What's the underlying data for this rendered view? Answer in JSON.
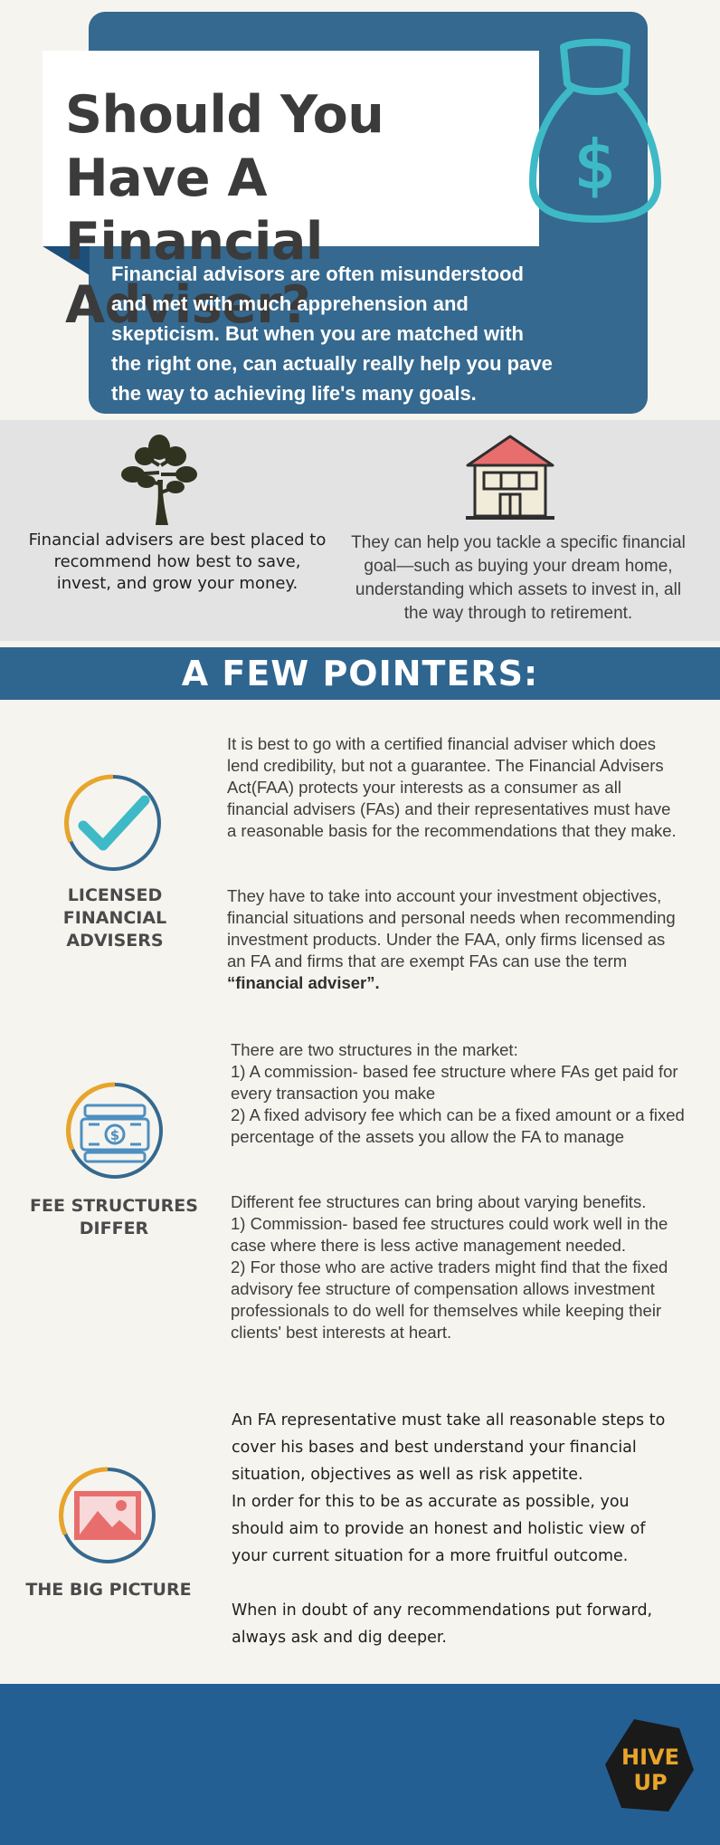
{
  "header": {
    "title_line1": "Should You Have A",
    "title_line2": "Financial Adviser?",
    "intro": "Financial advisors are often misunderstood and met with much apprehension and skepticism. But when you are matched with the right one, can actually really help you pave the way to achieving life's many goals.",
    "icon": "money-bag-icon"
  },
  "benefits": {
    "left_icon": "tree-icon",
    "left_text": "Financial advisers are best placed to recommend how best to save, invest, and grow your money.",
    "right_icon": "house-icon",
    "right_text": "They can help you tackle a specific financial goal—such as buying your dream home, understanding which assets to invest in, all the way through to retirement."
  },
  "section": {
    "title": "A FEW POINTERS:"
  },
  "pointers": [
    {
      "title": "LICENSED FINANCIAL ADVISERS",
      "icon": "checkmark-icon",
      "para1": "It is best to go with a certified financial adviser which does lend credibility, but not a guarantee. The Financial Advisers Act(FAA) protects your interests as a consumer as all financial advisers (FAs) and their representatives must have a reasonable basis for the recommendations that they make.",
      "para2_prefix": "They have to take into account your investment objectives, financial situations and personal needs when recommending investment products. Under the FAA, only firms licensed as an FA and firms that are exempt FAs can use the term ",
      "para2_bold": "“financial adviser”."
    },
    {
      "title": "FEE STRUCTURES DIFFER",
      "icon": "cash-stack-icon",
      "block1": [
        "There are two  structures in the market:",
        "1) A commission- based fee structure where FAs get paid for every transaction you make",
        "2) A fixed advisory fee which can be a fixed amount or a fixed percentage of the assets you allow the FA to manage"
      ],
      "block2": [
        "Different fee structures can bring about varying benefits.",
        "1) Commission- based fee structures could work well in the case where there is less active management needed.",
        "2) For those who are active traders might find that the fixed advisory fee structure of compensation allows investment professionals to do well for themselves while keeping their clients' best interests at heart."
      ]
    },
    {
      "title": "THE BIG PICTURE",
      "icon": "picture-icon",
      "para1": "An FA representative must take all reasonable steps to cover his bases and best understand your financial situation, objectives as well as risk appetite.",
      "para2": "In order for this to be as accurate as possible, you should aim to provide an honest and holistic view of your current situation for a more fruitful outcome.",
      "para3": "When in doubt of any recommendations put forward, always ask and dig deeper."
    }
  ],
  "footer": {
    "logo_line1": "HIVE",
    "logo_line2": "UP"
  },
  "colors": {
    "navy": "#35698f",
    "teal": "#3dbac6",
    "gold": "#e8a52a",
    "coral": "#e86e6e",
    "footer": "#245f93"
  }
}
